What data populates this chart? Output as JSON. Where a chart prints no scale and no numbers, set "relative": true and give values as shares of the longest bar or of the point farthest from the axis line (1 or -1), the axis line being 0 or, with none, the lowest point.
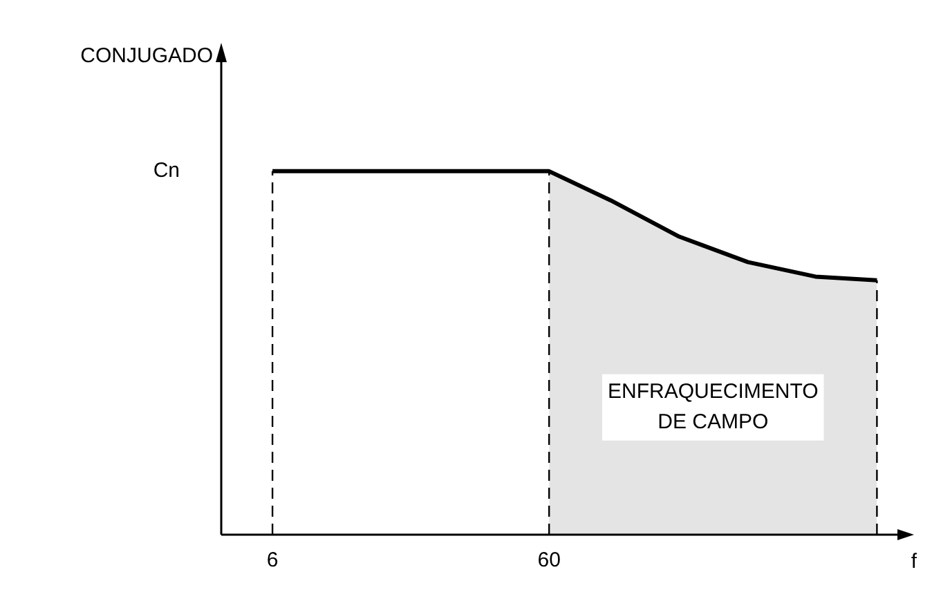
{
  "chart_data": {
    "type": "line",
    "xlabel": "f",
    "relative": true,
    "xlim": [
      -4,
      128
    ],
    "xticks": [
      6,
      60
    ],
    "series": [
      {
        "color": "#000000",
        "x": [
          6,
          60,
          72,
          85.4,
          98.8,
          112,
          124
        ],
        "values": [
          1,
          1,
          0.92,
          0.82,
          0.75,
          0.71,
          0.7
        ]
      }
    ],
    "ref_lines": [
      {
        "axis": "x",
        "value": 6,
        "line_style": "dashed"
      },
      {
        "axis": "x",
        "value": 60,
        "line_style": "dashed"
      },
      {
        "axis": "x",
        "value": 124,
        "line_style": "dashed"
      }
    ],
    "bands": [
      {
        "axis": "x",
        "from": 60,
        "to": 124,
        "label": "ENFRAQUECIMENTO DE CAMPO",
        "color": "#e4e4e4"
      }
    ],
    "annotations": [
      "CONJUGADO",
      "Cn"
    ],
    "grid": false,
    "legend": false,
    "marker": "none",
    "line_style": "solid"
  }
}
